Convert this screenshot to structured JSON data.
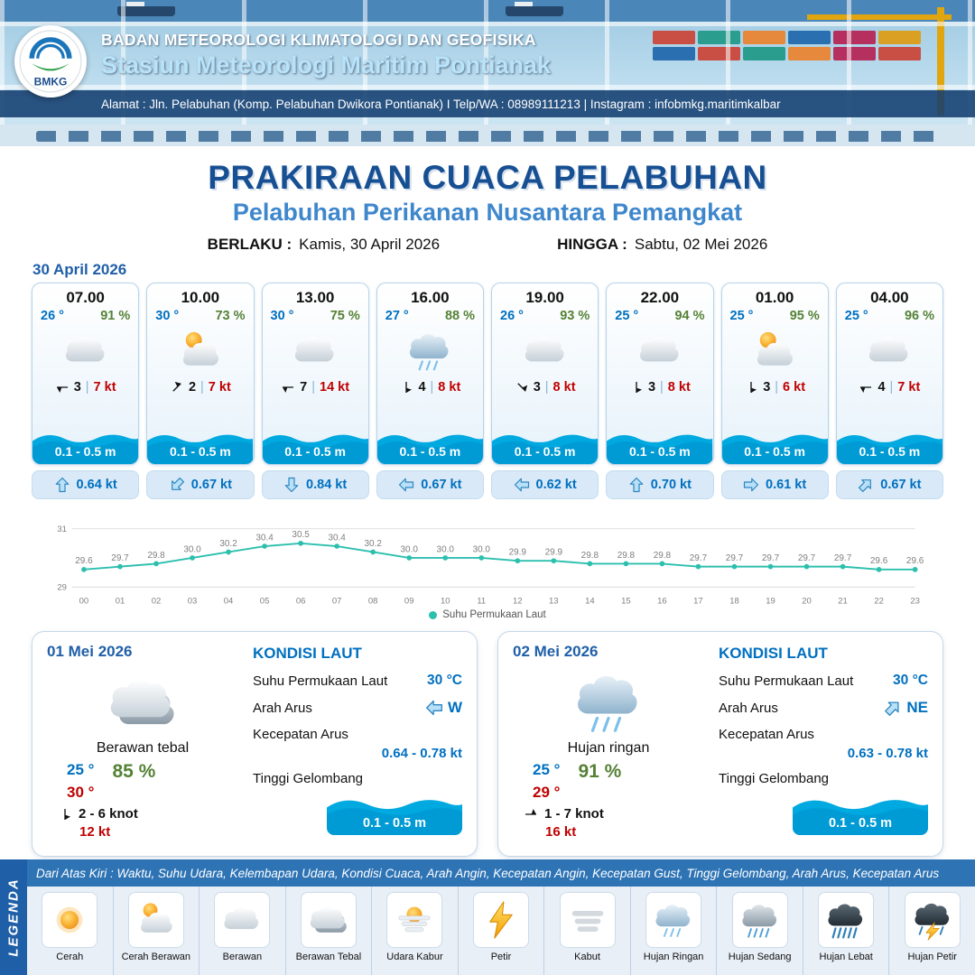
{
  "header": {
    "logo_text": "BMKG",
    "org": "BADAN METEOROLOGI KLIMATOLOGI DAN GEOFISIKA",
    "station": "Stasiun Meteorologi Maritim Pontianak",
    "address": "Alamat : Jln. Pelabuhan (Komp. Pelabuhan Dwikora Pontianak) I Telp/WA : 08989111213 | Instagram : infobmkg.maritimkalbar"
  },
  "title": {
    "main": "PRAKIRAAN CUACA PELABUHAN",
    "subtitle": "Pelabuhan Perikanan Nusantara Pemangkat",
    "valid_label": "BERLAKU :",
    "valid_value": "Kamis, 30 April 2026",
    "until_label": "HINGGA :",
    "until_value": "Sabtu, 02 Mei 2026"
  },
  "forecast_date": "30 April 2026",
  "cards": [
    {
      "time": "07.00",
      "temp": "26 °",
      "rh": "91 %",
      "icon": "#i-cloud",
      "icon_name": "berawan",
      "wind": "3",
      "wind_deg": 270,
      "gust": "7 kt",
      "wave": "0.1 - 0.5 m",
      "cur": "0.64 kt",
      "cur_deg": 0
    },
    {
      "time": "10.00",
      "temp": "30 °",
      "rh": "73 %",
      "icon": "#i-sun-cloud",
      "icon_name": "cerah-berawan",
      "wind": "2",
      "wind_deg": 45,
      "gust": "7 kt",
      "wave": "0.1 - 0.5 m",
      "cur": "0.67 kt",
      "cur_deg": 225
    },
    {
      "time": "13.00",
      "temp": "30 °",
      "rh": "75 %",
      "icon": "#i-cloud",
      "icon_name": "berawan",
      "wind": "7",
      "wind_deg": 270,
      "gust": "14 kt",
      "wave": "0.1 - 0.5 m",
      "cur": "0.84 kt",
      "cur_deg": 180
    },
    {
      "time": "16.00",
      "temp": "27 °",
      "rh": "88 %",
      "icon": "#i-rain-light",
      "icon_name": "hujan-ringan",
      "wind": "4",
      "wind_deg": 180,
      "gust": "8 kt",
      "wave": "0.1 - 0.5 m",
      "cur": "0.67 kt",
      "cur_deg": 270
    },
    {
      "time": "19.00",
      "temp": "26 °",
      "rh": "93 %",
      "icon": "#i-cloud",
      "icon_name": "berawan",
      "wind": "3",
      "wind_deg": 135,
      "gust": "8 kt",
      "wave": "0.1 - 0.5 m",
      "cur": "0.62 kt",
      "cur_deg": 270
    },
    {
      "time": "22.00",
      "temp": "25 °",
      "rh": "94 %",
      "icon": "#i-cloud",
      "icon_name": "berawan",
      "wind": "3",
      "wind_deg": 180,
      "gust": "8 kt",
      "wave": "0.1 - 0.5 m",
      "cur": "0.70 kt",
      "cur_deg": 0
    },
    {
      "time": "01.00",
      "temp": "25 °",
      "rh": "95 %",
      "icon": "#i-sun-cloud",
      "icon_name": "cerah-berawan",
      "wind": "3",
      "wind_deg": 180,
      "gust": "6 kt",
      "wave": "0.1 - 0.5 m",
      "cur": "0.61 kt",
      "cur_deg": 90
    },
    {
      "time": "04.00",
      "temp": "25 °",
      "rh": "96 %",
      "icon": "#i-cloud",
      "icon_name": "berawan",
      "wind": "4",
      "wind_deg": 270,
      "gust": "7 kt",
      "wave": "0.1 - 0.5 m",
      "cur": "0.67 kt",
      "cur_deg": 45
    }
  ],
  "chart_data": {
    "type": "line",
    "series_name": "Suhu Permukaan Laut",
    "x": [
      "00",
      "01",
      "02",
      "03",
      "04",
      "05",
      "06",
      "07",
      "08",
      "09",
      "10",
      "11",
      "12",
      "13",
      "14",
      "15",
      "16",
      "17",
      "18",
      "19",
      "20",
      "21",
      "22",
      "23"
    ],
    "values": [
      29.6,
      29.7,
      29.8,
      30.0,
      30.2,
      30.4,
      30.5,
      30.4,
      30.2,
      30.0,
      30.0,
      30.0,
      29.9,
      29.9,
      29.8,
      29.8,
      29.8,
      29.7,
      29.7,
      29.7,
      29.7,
      29.7,
      29.6,
      29.6
    ],
    "labels": [
      "29.6",
      "29.7",
      "29.8",
      "30.0",
      "30.2",
      "30.4",
      "30.5",
      "30.4",
      "30.2",
      "30.0",
      "30.0",
      "30.0",
      "29.9",
      "29.9",
      "29.8",
      "29.8",
      "29.8",
      "29.7",
      "29.7",
      "29.7",
      "29.7",
      "29.7",
      "29.6",
      "29.6"
    ],
    "ylim": [
      29,
      31
    ],
    "yticks": [
      29,
      31
    ],
    "line_color": "#2cbfae",
    "grid": true,
    "legend_position": "bottom"
  },
  "days": [
    {
      "date": "01 Mei 2026",
      "icon": "#i-cloud-thick",
      "icon_name": "berawan-tebal",
      "cond": "Berawan tebal",
      "tmin": "25 °",
      "tmax": "30 °",
      "rh": "85 %",
      "wind": "2 - 6 knot",
      "wind_deg": 180,
      "gust": "12 kt",
      "sea": {
        "title": "KONDISI LAUT",
        "sst_label": "Suhu Permukaan Laut",
        "sst": "30 °C",
        "dir_label": "Arah Arus",
        "dir": "W",
        "dir_deg": 270,
        "spd_label": "Kecepatan Arus",
        "spd": "0.64 - 0.78 kt",
        "wave_label": "Tinggi Gelombang",
        "wave": "0.1 - 0.5 m"
      }
    },
    {
      "date": "02 Mei 2026",
      "icon": "#i-rain-light",
      "icon_name": "hujan-ringan",
      "cond": "Hujan ringan",
      "tmin": "25 °",
      "tmax": "29 °",
      "rh": "91 %",
      "wind": "1 - 7 knot",
      "wind_deg": 90,
      "gust": "16 kt",
      "sea": {
        "title": "KONDISI LAUT",
        "sst_label": "Suhu Permukaan Laut",
        "sst": "30 °C",
        "dir_label": "Arah Arus",
        "dir": "NE",
        "dir_deg": 45,
        "spd_label": "Kecepatan Arus",
        "spd": "0.63 - 0.78 kt",
        "wave_label": "Tinggi Gelombang",
        "wave": "0.1 - 0.5 m"
      }
    }
  ],
  "legend": {
    "side_label": "LEGENDA",
    "note": "Dari Atas Kiri : Waktu, Suhu Udara, Kelembapan Udara, Kondisi Cuaca, Arah Angin, Kecepatan Angin, Kecepatan Gust, Tinggi Gelombang, Arah Arus, Kecepatan Arus",
    "items": [
      {
        "icon": "#i-sun",
        "icon_name": "sun-icon",
        "label": "Cerah"
      },
      {
        "icon": "#i-sun-cloud",
        "icon_name": "sun-cloud-icon",
        "label": "Cerah Berawan"
      },
      {
        "icon": "#i-cloud",
        "icon_name": "cloud-icon",
        "label": "Berawan"
      },
      {
        "icon": "#i-cloud-thick",
        "icon_name": "thick-cloud-icon",
        "label": "Berawan Tebal"
      },
      {
        "icon": "#i-haze",
        "icon_name": "haze-icon",
        "label": "Udara Kabur"
      },
      {
        "icon": "#i-thunder",
        "icon_name": "lightning-icon",
        "label": "Petir"
      },
      {
        "icon": "#i-fog",
        "icon_name": "fog-icon",
        "label": "Kabut"
      },
      {
        "icon": "#i-rain-light",
        "icon_name": "light-rain-icon",
        "label": "Hujan Ringan"
      },
      {
        "icon": "#i-rain-mid",
        "icon_name": "moderate-rain-icon",
        "label": "Hujan Sedang"
      },
      {
        "icon": "#i-rain-heavy",
        "icon_name": "heavy-rain-icon",
        "label": "Hujan Lebat"
      },
      {
        "icon": "#i-thunder-rain",
        "icon_name": "thunderstorm-icon",
        "label": "Hujan Petir"
      }
    ]
  },
  "colors": {
    "accent_blue": "#0070c0",
    "humidity_green": "#548235",
    "gust_red": "#c00000",
    "wave_blue": "#00a9e0",
    "chart_teal": "#2cbfae",
    "header_blue": "#1f5fa8"
  }
}
